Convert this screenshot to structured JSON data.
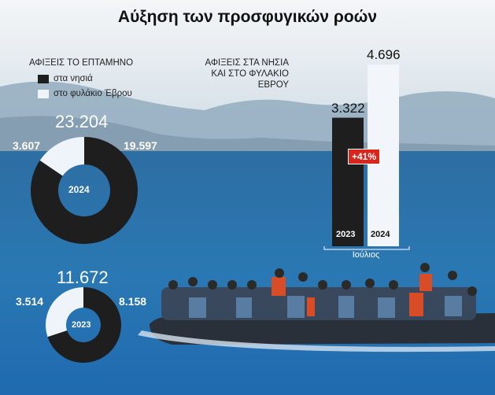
{
  "title": "Αύξηση των προσφυγικών ροών",
  "legend": {
    "title": "ΑΦΙΞΕΙΣ ΤΟ ΕΠΤΑΜΗΝΟ",
    "items": [
      {
        "label": "στα νησιά",
        "color": "#1e1e1e"
      },
      {
        "label": "στο φυλάκιο Έβρου",
        "color": "#eef4fa"
      }
    ]
  },
  "chart_data": [
    {
      "type": "pie",
      "variant": "donut",
      "center_label": "2024",
      "total": "23.204",
      "slices": [
        {
          "name": "στα νησιά",
          "label": "19.597",
          "value": 19597,
          "color": "#1e1e1e"
        },
        {
          "name": "στο φυλάκιο Έβρου",
          "label": "3.607",
          "value": 3607,
          "color": "#eef4fa"
        }
      ]
    },
    {
      "type": "pie",
      "variant": "donut",
      "center_label": "2023",
      "total": "11.672",
      "slices": [
        {
          "name": "στα νησιά",
          "label": "8.158",
          "value": 8158,
          "color": "#1e1e1e"
        },
        {
          "name": "στο φυλάκιο Έβρου",
          "label": "3.514",
          "value": 3514,
          "color": "#eef4fa"
        }
      ]
    },
    {
      "type": "bar",
      "title": "ΑΦΙΞΕΙΣ ΣΤΑ ΝΗΣΙΑ ΚΑΙ ΣΤΟ ΦΥΛΑΚΙΟ ΕΒΡΟΥ",
      "xlabel": "Ιούλιος",
      "categories": [
        "2023",
        "2024"
      ],
      "values": [
        3322,
        4696
      ],
      "value_labels": [
        "3.322",
        "4.696"
      ],
      "colors": [
        "#1e1e1e",
        "#f2f6fa"
      ],
      "annotation": "+41%",
      "annotation_color": "#d9261c"
    }
  ]
}
